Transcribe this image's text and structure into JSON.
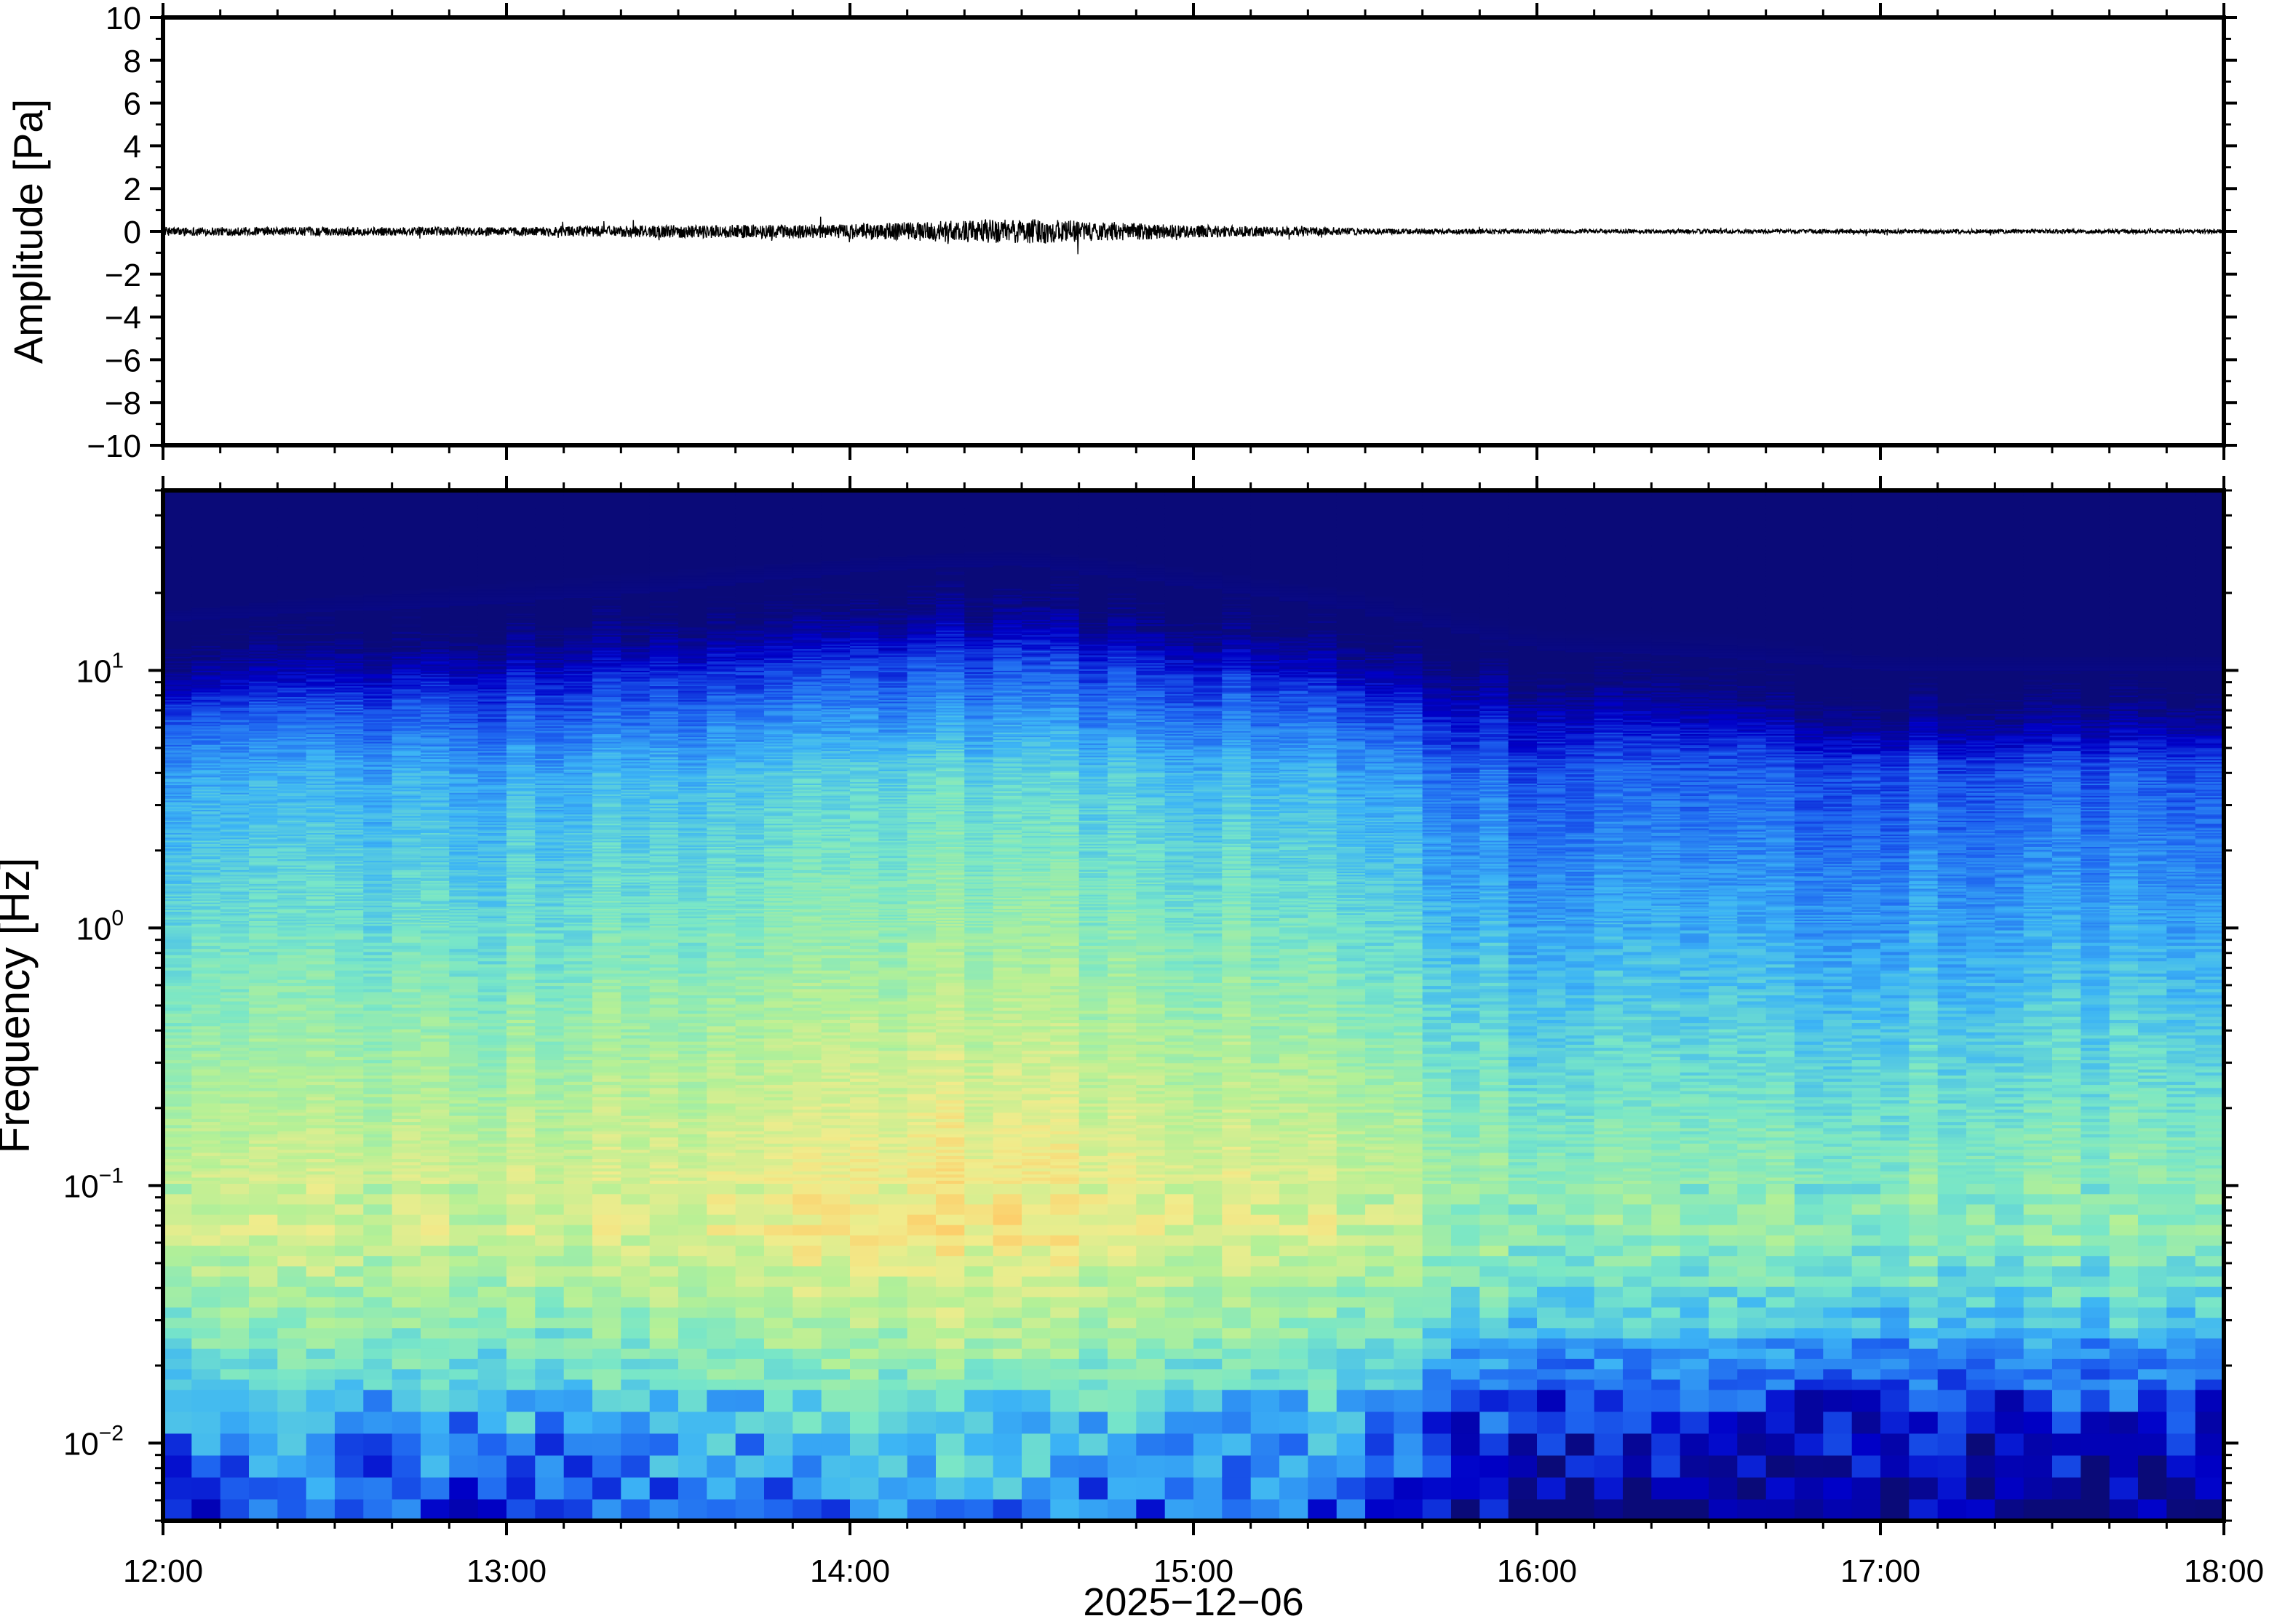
{
  "chart_data": [
    {
      "type": "line",
      "title": "",
      "xlabel": "",
      "ylabel": "Amplitude [Pa]",
      "x_range": [
        "12:00",
        "18:00"
      ],
      "ylim": [
        -10,
        10
      ],
      "y_ticks": [
        "10",
        "8",
        "6",
        "4",
        "2",
        "0",
        "−2",
        "−4",
        "−6",
        "−8",
        "−10"
      ],
      "y_tick_values": [
        10,
        8,
        6,
        4,
        2,
        0,
        -2,
        -4,
        -6,
        -8,
        -10
      ],
      "x_tick_labels": [
        "12:00",
        "13:00",
        "14:00",
        "15:00",
        "16:00",
        "17:00",
        "18:00"
      ],
      "series_description": "near-zero infrasound pressure trace, peak about ±0.6 Pa around 14:30",
      "envelope": {
        "times_h": [
          12.0,
          12.5,
          13.0,
          13.5,
          14.0,
          14.5,
          15.0,
          15.5,
          16.0,
          17.0,
          18.0
        ],
        "amplitude_pa": [
          0.2,
          0.2,
          0.2,
          0.3,
          0.35,
          0.6,
          0.3,
          0.15,
          0.1,
          0.1,
          0.1
        ]
      },
      "grid": false,
      "line_color": "#000000"
    },
    {
      "type": "heatmap",
      "title": "",
      "xlabel": "2025−12−06",
      "ylabel": "Frequency [Hz]",
      "x_tick_labels": [
        "12:00",
        "13:00",
        "14:00",
        "15:00",
        "16:00",
        "17:00",
        "18:00"
      ],
      "y_scale": "log",
      "ylim": [
        0.005,
        50
      ],
      "y_ticks": [
        {
          "base": "10",
          "exp": "1",
          "value": 10
        },
        {
          "base": "10",
          "exp": "0",
          "value": 1
        },
        {
          "base": "10",
          "exp": "−1",
          "value": 0.1
        },
        {
          "base": "10",
          "exp": "−2",
          "value": 0.01
        }
      ],
      "colormap": "jet-like (dark navy = low power, blue, cyan, green, yellow, orange = high power)",
      "colormap_stops": [
        "#0a0a78",
        "#0000c8",
        "#1e64f0",
        "#3cb4f5",
        "#78e6c8",
        "#b4f096",
        "#f0ec8c",
        "#ffc864",
        "#ff9646"
      ],
      "features": [
        "top band above ~20 Hz saturated dark navy",
        "upper power cutoff rises from ~12 Hz at 12:00 to ~20 Hz near 14:30, then drops to ~8 Hz after 15:30",
        "highest power (orange/yellow) between 0.03 and 0.3 Hz from 13:30 to 15:00",
        "low frequencies below 0.02 Hz mostly blue",
        "lower overall power (bluer) after 15:30"
      ],
      "grid": false
    }
  ]
}
